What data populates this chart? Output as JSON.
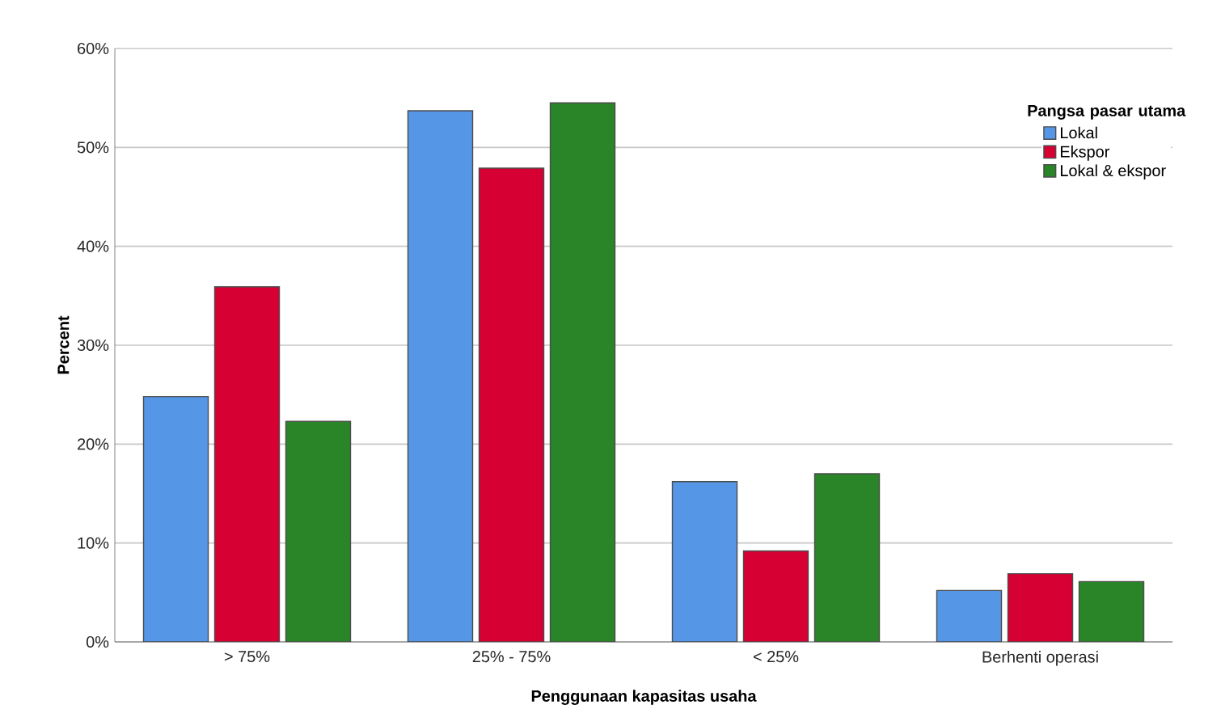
{
  "chart_data": {
    "type": "bar",
    "xlabel": "Penggunaan kapasitas usaha",
    "ylabel": "Percent",
    "legend_title": "Pangsa pasar utama",
    "categories": [
      "> 75%",
      "25% - 75%",
      "< 25%",
      "Berhenti operasi"
    ],
    "series": [
      {
        "name": "Lokal",
        "color": "#5596e6",
        "values": [
          24.8,
          53.7,
          16.2,
          5.2
        ]
      },
      {
        "name": "Ekspor",
        "color": "#d60032",
        "values": [
          35.9,
          47.9,
          9.2,
          6.9
        ]
      },
      {
        "name": "Lokal & ekspor",
        "color": "#2a8428",
        "values": [
          22.3,
          54.5,
          17.0,
          6.1
        ]
      }
    ],
    "ylim": [
      0,
      60
    ],
    "yticks": [
      {
        "value": 0,
        "label": "0%"
      },
      {
        "value": 10,
        "label": "10%"
      },
      {
        "value": 20,
        "label": "20%"
      },
      {
        "value": 30,
        "label": "30%"
      },
      {
        "value": 40,
        "label": "40%"
      },
      {
        "value": 50,
        "label": "50%"
      },
      {
        "value": 60,
        "label": "60%"
      }
    ],
    "grid": "y",
    "legend": "top right"
  }
}
